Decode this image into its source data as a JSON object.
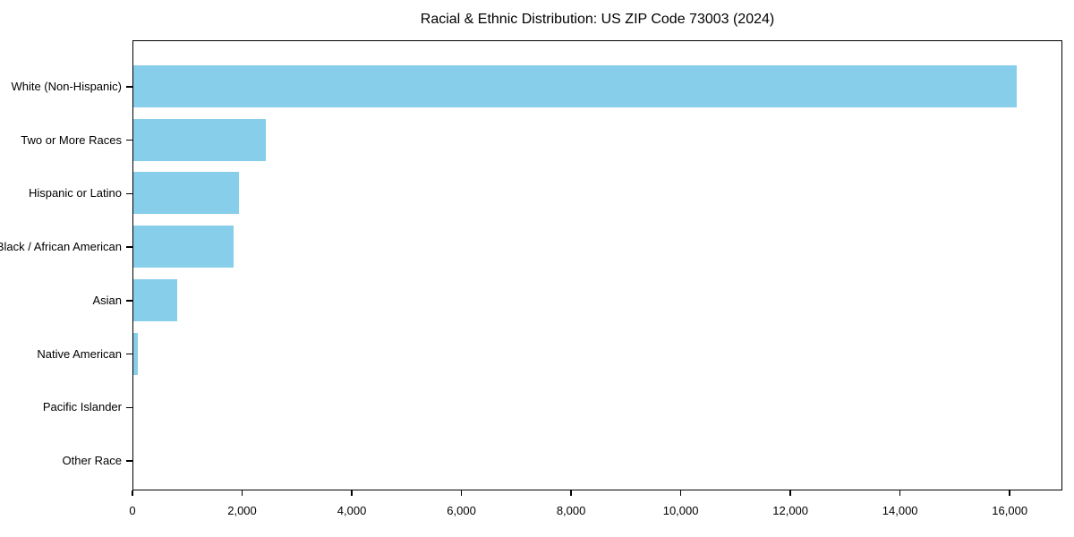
{
  "chart_data": {
    "type": "bar",
    "orientation": "horizontal",
    "title": "Racial & Ethnic Distribution: US ZIP Code 73003 (2024)",
    "categories": [
      "White (Non-Hispanic)",
      "Two or More Races",
      "Hispanic or Latino",
      "Black / African American",
      "Asian",
      "Native American",
      "Pacific Islander",
      "Other Race"
    ],
    "values": [
      16150,
      2425,
      1925,
      1825,
      800,
      85,
      0,
      0
    ],
    "xlabel": "",
    "ylabel": "",
    "xlim": [
      0,
      16960
    ],
    "x_ticks": [
      0,
      2000,
      4000,
      6000,
      8000,
      10000,
      12000,
      14000,
      16000
    ],
    "x_tick_labels": [
      "0",
      "2,000",
      "4,000",
      "6,000",
      "8,000",
      "10,000",
      "12,000",
      "14,000",
      "16,000"
    ],
    "bar_color": "#87CEEB",
    "axis_color": "#000000",
    "text_color": "#000000",
    "background_color": "#ffffff",
    "grid": false,
    "legend": false
  }
}
